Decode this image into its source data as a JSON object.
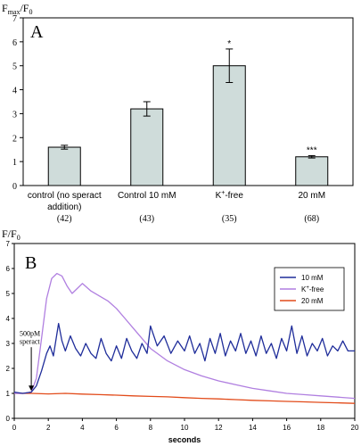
{
  "chart_data": [
    {
      "type": "bar",
      "panel_label": "A",
      "ylabel_main": "F",
      "ylabel_sub": "max",
      "ylabel_tail": "/F",
      "ylabel_tail_sub": "0",
      "ylim": [
        0,
        7
      ],
      "yticks": [
        "0",
        "1",
        "2",
        "3",
        "4",
        "5",
        "6",
        "7"
      ],
      "grid": false,
      "categories": [
        {
          "line1": "control (no speract",
          "line2": "addition)",
          "n": "(42)"
        },
        {
          "line1": "Control 10 mM",
          "line2": "",
          "n": "(43)"
        },
        {
          "line1": "K",
          "sup": "+",
          "line1_tail": "-free",
          "line2": "",
          "n": "(35)"
        },
        {
          "line1": "20 mM",
          "line2": "",
          "n": "(68)"
        }
      ],
      "values": [
        1.6,
        3.2,
        5.0,
        1.2
      ],
      "errors": [
        0.08,
        0.3,
        0.7,
        0.05
      ],
      "annotations": [
        "",
        "",
        "*",
        "***"
      ],
      "bar_color": "#cfdcda"
    },
    {
      "type": "line",
      "panel_label": "B",
      "ylabel_main": "F/F",
      "ylabel_sub": "0",
      "xlabel": "seconds",
      "xlim": [
        0,
        20
      ],
      "ylim": [
        0,
        7
      ],
      "xticks": [
        "0",
        "2",
        "4",
        "6",
        "8",
        "10",
        "12",
        "14",
        "16",
        "18",
        "20"
      ],
      "yticks": [
        "0",
        "1",
        "2",
        "3",
        "4",
        "5",
        "6",
        "7"
      ],
      "legend_position": "top-right",
      "annotation": {
        "line1": "500pM",
        "line2": "speract",
        "x": 1.0,
        "y": 1.1
      },
      "series": [
        {
          "name": "10 mM",
          "color": "#1f2d9a",
          "x": [
            0,
            0.5,
            1.0,
            1.3,
            1.6,
            1.9,
            2.1,
            2.3,
            2.6,
            2.8,
            3.0,
            3.3,
            3.6,
            3.9,
            4.2,
            4.5,
            4.8,
            5.1,
            5.4,
            5.7,
            6.0,
            6.3,
            6.6,
            6.9,
            7.2,
            7.5,
            7.8,
            8.0,
            8.4,
            8.8,
            9.2,
            9.6,
            10.0,
            10.3,
            10.6,
            10.9,
            11.2,
            11.5,
            11.8,
            12.1,
            12.4,
            12.7,
            13.0,
            13.3,
            13.6,
            13.9,
            14.2,
            14.5,
            14.8,
            15.1,
            15.4,
            15.7,
            16.0,
            16.3,
            16.6,
            16.9,
            17.2,
            17.5,
            17.8,
            18.1,
            18.4,
            18.7,
            19.0,
            19.3,
            19.6,
            20.0
          ],
          "y": [
            1.05,
            1.0,
            1.05,
            1.3,
            1.9,
            2.6,
            2.9,
            2.5,
            3.8,
            3.1,
            2.7,
            3.3,
            2.8,
            2.5,
            3.0,
            2.6,
            2.4,
            3.2,
            2.6,
            2.3,
            2.9,
            2.4,
            3.2,
            2.7,
            2.4,
            3.0,
            2.6,
            3.7,
            2.9,
            3.3,
            2.6,
            3.1,
            2.7,
            3.3,
            2.6,
            3.0,
            2.3,
            3.2,
            2.6,
            3.4,
            2.5,
            3.1,
            2.7,
            3.4,
            2.6,
            3.1,
            2.5,
            3.3,
            2.6,
            3.0,
            2.4,
            3.2,
            2.7,
            3.7,
            2.6,
            3.3,
            2.5,
            3.0,
            2.7,
            3.2,
            2.5,
            2.9,
            2.7,
            3.1,
            2.7,
            2.7
          ]
        },
        {
          "name": "K+-free",
          "legend_main": "K",
          "legend_sup": "+",
          "legend_tail": "-free",
          "color": "#b07fe0",
          "x": [
            0,
            0.5,
            1.0,
            1.3,
            1.6,
            1.9,
            2.2,
            2.5,
            2.8,
            3.1,
            3.4,
            3.7,
            4.0,
            4.5,
            5.0,
            5.5,
            6.0,
            6.5,
            7.0,
            7.5,
            8.0,
            9.0,
            10.0,
            11.0,
            12.0,
            13.0,
            14.0,
            15.0,
            16.0,
            17.0,
            18.0,
            19.0,
            20.0
          ],
          "y": [
            1.0,
            1.0,
            1.05,
            1.6,
            3.2,
            4.8,
            5.6,
            5.8,
            5.7,
            5.3,
            5.0,
            5.2,
            5.4,
            5.1,
            4.9,
            4.7,
            4.4,
            4.0,
            3.6,
            3.2,
            2.8,
            2.3,
            1.95,
            1.7,
            1.5,
            1.35,
            1.2,
            1.1,
            1.0,
            0.95,
            0.9,
            0.85,
            0.8
          ]
        },
        {
          "name": "20 mM",
          "color": "#e24b1a",
          "x": [
            0,
            1,
            2,
            3,
            4,
            5,
            6,
            7,
            8,
            9,
            10,
            11,
            12,
            13,
            14,
            15,
            16,
            17,
            18,
            19,
            20
          ],
          "y": [
            1.0,
            1.0,
            0.98,
            1.0,
            0.97,
            0.95,
            0.93,
            0.9,
            0.88,
            0.86,
            0.83,
            0.8,
            0.78,
            0.75,
            0.72,
            0.7,
            0.68,
            0.66,
            0.64,
            0.62,
            0.6
          ]
        }
      ]
    }
  ]
}
